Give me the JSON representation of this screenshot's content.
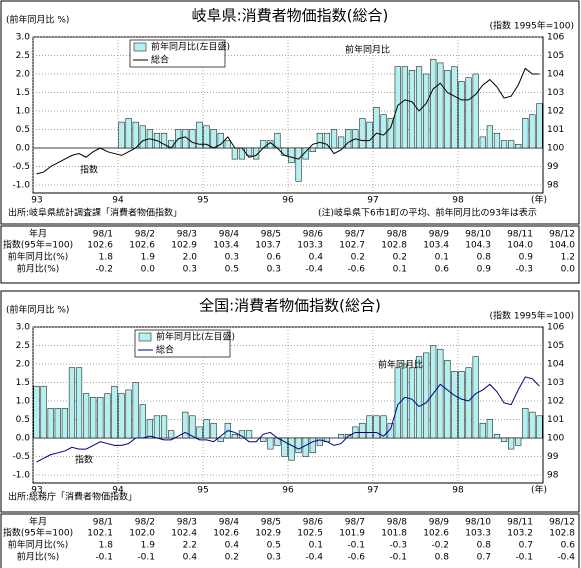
{
  "chart_data": [
    {
      "type": "combo",
      "title": "岐阜県:消費者物価指数(総合)",
      "left_axis_label": "(前年同月比 %)",
      "right_axis_label": "(指数 1995年=100)",
      "x_label": "(年)",
      "source": "出所:岐阜県統計調査課「消費者物価指数」",
      "note": "(注)岐阜県下6市1町の平均、前年同月比の93年は表示",
      "annotations": [
        "前年同月比",
        "指数"
      ],
      "categories": [
        "93",
        null,
        null,
        null,
        null,
        null,
        null,
        null,
        null,
        null,
        null,
        null,
        "94",
        null,
        null,
        null,
        null,
        null,
        null,
        null,
        null,
        null,
        null,
        null,
        "95",
        null,
        null,
        null,
        null,
        null,
        null,
        null,
        null,
        null,
        null,
        null,
        "96",
        null,
        null,
        null,
        null,
        null,
        null,
        null,
        null,
        null,
        null,
        null,
        "97",
        null,
        null,
        null,
        null,
        null,
        null,
        null,
        null,
        null,
        null,
        null,
        "98",
        null,
        null,
        null,
        null,
        null,
        null,
        null,
        null,
        null,
        null,
        null
      ],
      "series": [
        {
          "name": "前年同月比(左目盛)",
          "color": "#b4f0f0",
          "values": [
            null,
            null,
            null,
            null,
            null,
            null,
            null,
            null,
            null,
            null,
            null,
            null,
            0.7,
            0.8,
            0.7,
            0.6,
            0.5,
            0.4,
            0.4,
            0.2,
            0.5,
            0.5,
            0.5,
            0.7,
            0.6,
            0.5,
            0.4,
            0.2,
            -0.3,
            -0.3,
            -0.2,
            -0.3,
            0.2,
            0.2,
            0.4,
            -0.2,
            -0.4,
            -0.9,
            -0.3,
            -0.1,
            0.4,
            0.4,
            0.5,
            0.3,
            0.5,
            0.5,
            0.8,
            0.7,
            1.1,
            0.9,
            0.8,
            2.2,
            2.2,
            2.1,
            2.2,
            2.0,
            2.4,
            2.3,
            2.1,
            2.2,
            1.8,
            1.9,
            2.0,
            0.3,
            0.6,
            0.4,
            0.2,
            0.2,
            0.1,
            0.8,
            0.9,
            1.2
          ]
        },
        {
          "name": "総合",
          "color": "#000000",
          "axis": "y2",
          "values": [
            98.6,
            98.7,
            99.0,
            99.2,
            99.4,
            99.6,
            99.7,
            99.5,
            99.8,
            100.0,
            99.8,
            99.7,
            99.6,
            99.8,
            100.0,
            100.4,
            100.5,
            100.4,
            100.2,
            100.0,
            100.5,
            100.6,
            100.3,
            100.2,
            100.2,
            100.0,
            100.2,
            100.6,
            100.0,
            100.0,
            99.5,
            99.6,
            100.0,
            100.3,
            100.0,
            99.6,
            99.5,
            99.4,
            99.8,
            100.2,
            100.3,
            100.2,
            99.7,
            99.9,
            100.3,
            100.5,
            100.4,
            100.4,
            100.8,
            100.7,
            101.1,
            102.3,
            102.6,
            102.5,
            102.0,
            102.4,
            103.2,
            103.5,
            103.0,
            102.8,
            102.6,
            102.6,
            102.9,
            103.4,
            103.7,
            103.3,
            102.7,
            102.8,
            103.4,
            104.3,
            104.0,
            104.0
          ]
        }
      ],
      "ylim": [
        -1,
        3
      ],
      "yticks": [
        {
          "value": -1,
          "label": "-1.0"
        },
        -0.5,
        {
          "value": 0,
          "label": "0.0"
        },
        0.5,
        {
          "value": 1,
          "label": "1.0"
        },
        1.5,
        {
          "value": 2,
          "label": "2.0"
        },
        2.5,
        {
          "value": 3,
          "label": "3.0"
        }
      ],
      "y2lim": [
        98,
        106
      ],
      "y2ticks": [
        98,
        99,
        100,
        101,
        102,
        103,
        104,
        105,
        106
      ],
      "grid": true
    },
    {
      "type": "combo",
      "title": "全国:消費者物価指数(総合)",
      "left_axis_label": "(前年同月比 %)",
      "right_axis_label": "(指数 1995年=100)",
      "x_label": "(年)",
      "source": "出所:総務庁「消費者物価指数」",
      "annotations": [
        "前年同月比",
        "指数"
      ],
      "categories": [
        "93",
        null,
        null,
        null,
        null,
        null,
        null,
        null,
        null,
        null,
        null,
        null,
        "94",
        null,
        null,
        null,
        null,
        null,
        null,
        null,
        null,
        null,
        null,
        null,
        "95",
        null,
        null,
        null,
        null,
        null,
        null,
        null,
        null,
        null,
        null,
        null,
        "96",
        null,
        null,
        null,
        null,
        null,
        null,
        null,
        null,
        null,
        null,
        null,
        "97",
        null,
        null,
        null,
        null,
        null,
        null,
        null,
        null,
        null,
        null,
        null,
        "98",
        null,
        null,
        null,
        null,
        null,
        null,
        null,
        null,
        null,
        null,
        null
      ],
      "series": [
        {
          "name": "前年同月比(左目盛)",
          "color": "#b4f0f0",
          "values": [
            1.4,
            1.4,
            0.8,
            0.8,
            0.8,
            1.9,
            1.9,
            1.2,
            1.1,
            1.1,
            1.2,
            1.4,
            1.2,
            1.3,
            1.5,
            0.9,
            0.5,
            0.6,
            0.6,
            0.2,
            0.0,
            0.7,
            0.6,
            0.3,
            0.5,
            0.4,
            -0.1,
            0.4,
            0.1,
            0.2,
            0.2,
            0.0,
            -0.1,
            -0.3,
            -0.2,
            -0.5,
            -0.6,
            -0.4,
            -0.5,
            -0.4,
            -0.2,
            -0.1,
            0.0,
            0.1,
            0.1,
            0.3,
            0.4,
            0.6,
            0.6,
            0.6,
            0.4,
            1.9,
            2.0,
            1.9,
            2.2,
            2.3,
            2.5,
            2.4,
            2.1,
            1.8,
            1.8,
            1.9,
            2.2,
            0.4,
            0.5,
            0.1,
            -0.1,
            -0.3,
            -0.2,
            0.8,
            0.7,
            0.6
          ]
        },
        {
          "name": "総合",
          "color": "#000080",
          "axis": "y2",
          "values": [
            98.7,
            98.9,
            99.1,
            99.2,
            99.3,
            99.5,
            99.4,
            99.4,
            99.6,
            99.8,
            99.7,
            99.6,
            99.6,
            99.7,
            100.0,
            100.0,
            100.1,
            100.0,
            99.9,
            99.9,
            100.1,
            100.3,
            100.1,
            99.9,
            99.9,
            99.8,
            100.1,
            100.4,
            100.3,
            100.1,
            99.8,
            99.8,
            100.2,
            100.3,
            100.0,
            99.8,
            99.6,
            99.4,
            99.6,
            99.8,
            99.9,
            99.8,
            99.6,
            99.7,
            100.1,
            100.3,
            100.3,
            100.3,
            100.3,
            100.1,
            100.5,
            101.8,
            102.2,
            102.1,
            101.7,
            101.9,
            102.4,
            102.9,
            102.6,
            102.3,
            102.1,
            102.0,
            102.4,
            102.6,
            102.9,
            102.5,
            101.9,
            101.8,
            102.6,
            103.3,
            103.2,
            102.8
          ]
        }
      ],
      "ylim": [
        -1,
        3
      ],
      "yticks": [
        {
          "value": -1,
          "label": "-1.0"
        },
        -0.5,
        {
          "value": 0,
          "label": "0.0"
        },
        0.5,
        {
          "value": 1,
          "label": "1.0"
        },
        1.5,
        {
          "value": 2,
          "label": "2.0"
        },
        2.5,
        {
          "value": 3,
          "label": "3.0"
        }
      ],
      "y2lim": [
        98,
        106
      ],
      "y2ticks": [
        98,
        99,
        100,
        101,
        102,
        103,
        104,
        105,
        106
      ],
      "grid": true
    }
  ],
  "tables": [
    {
      "header": [
        "年月",
        "98/1",
        "98/2",
        "98/3",
        "98/4",
        "98/5",
        "98/6",
        "98/7",
        "98/8",
        "98/9",
        "98/10",
        "98/11",
        "98/12"
      ],
      "rows": [
        [
          "指数(95年=100)",
          "102.6",
          "102.6",
          "102.9",
          "103.4",
          "103.7",
          "103.3",
          "102.7",
          "102.8",
          "103.4",
          "104.3",
          "104.0",
          "104.0"
        ],
        [
          "前年同月比(%)",
          "1.8",
          "1.9",
          "2.0",
          "0.3",
          "0.6",
          "0.4",
          "0.2",
          "0.2",
          "0.1",
          "0.8",
          "0.9",
          "1.2"
        ],
        [
          "前月比(%)",
          "-0.2",
          "0.0",
          "0.3",
          "0.5",
          "0.3",
          "-0.4",
          "-0.6",
          "0.1",
          "0.6",
          "0.9",
          "-0.3",
          "0.0"
        ]
      ]
    },
    {
      "header": [
        "年月",
        "98/1",
        "98/2",
        "98/3",
        "98/4",
        "98/5",
        "98/6",
        "98/7",
        "98/8",
        "98/9",
        "98/10",
        "98/11",
        "98/12"
      ],
      "rows": [
        [
          "指数(95年=100)",
          "102.1",
          "102.0",
          "102.4",
          "102.6",
          "102.9",
          "102.5",
          "101.9",
          "101.8",
          "102.6",
          "103.3",
          "103.2",
          "102.8"
        ],
        [
          "前年同月比(%)",
          "1.8",
          "1.9",
          "2.2",
          "0.4",
          "0.5",
          "0.1",
          "-0.1",
          "-0.3",
          "-0.2",
          "0.8",
          "0.7",
          "0.6"
        ],
        [
          "前月比(%)",
          "-0.1",
          "-0.1",
          "0.4",
          "0.2",
          "0.3",
          "-0.4",
          "-0.6",
          "-0.1",
          "0.8",
          "0.7",
          "-0.1",
          "-0.4"
        ]
      ]
    }
  ]
}
